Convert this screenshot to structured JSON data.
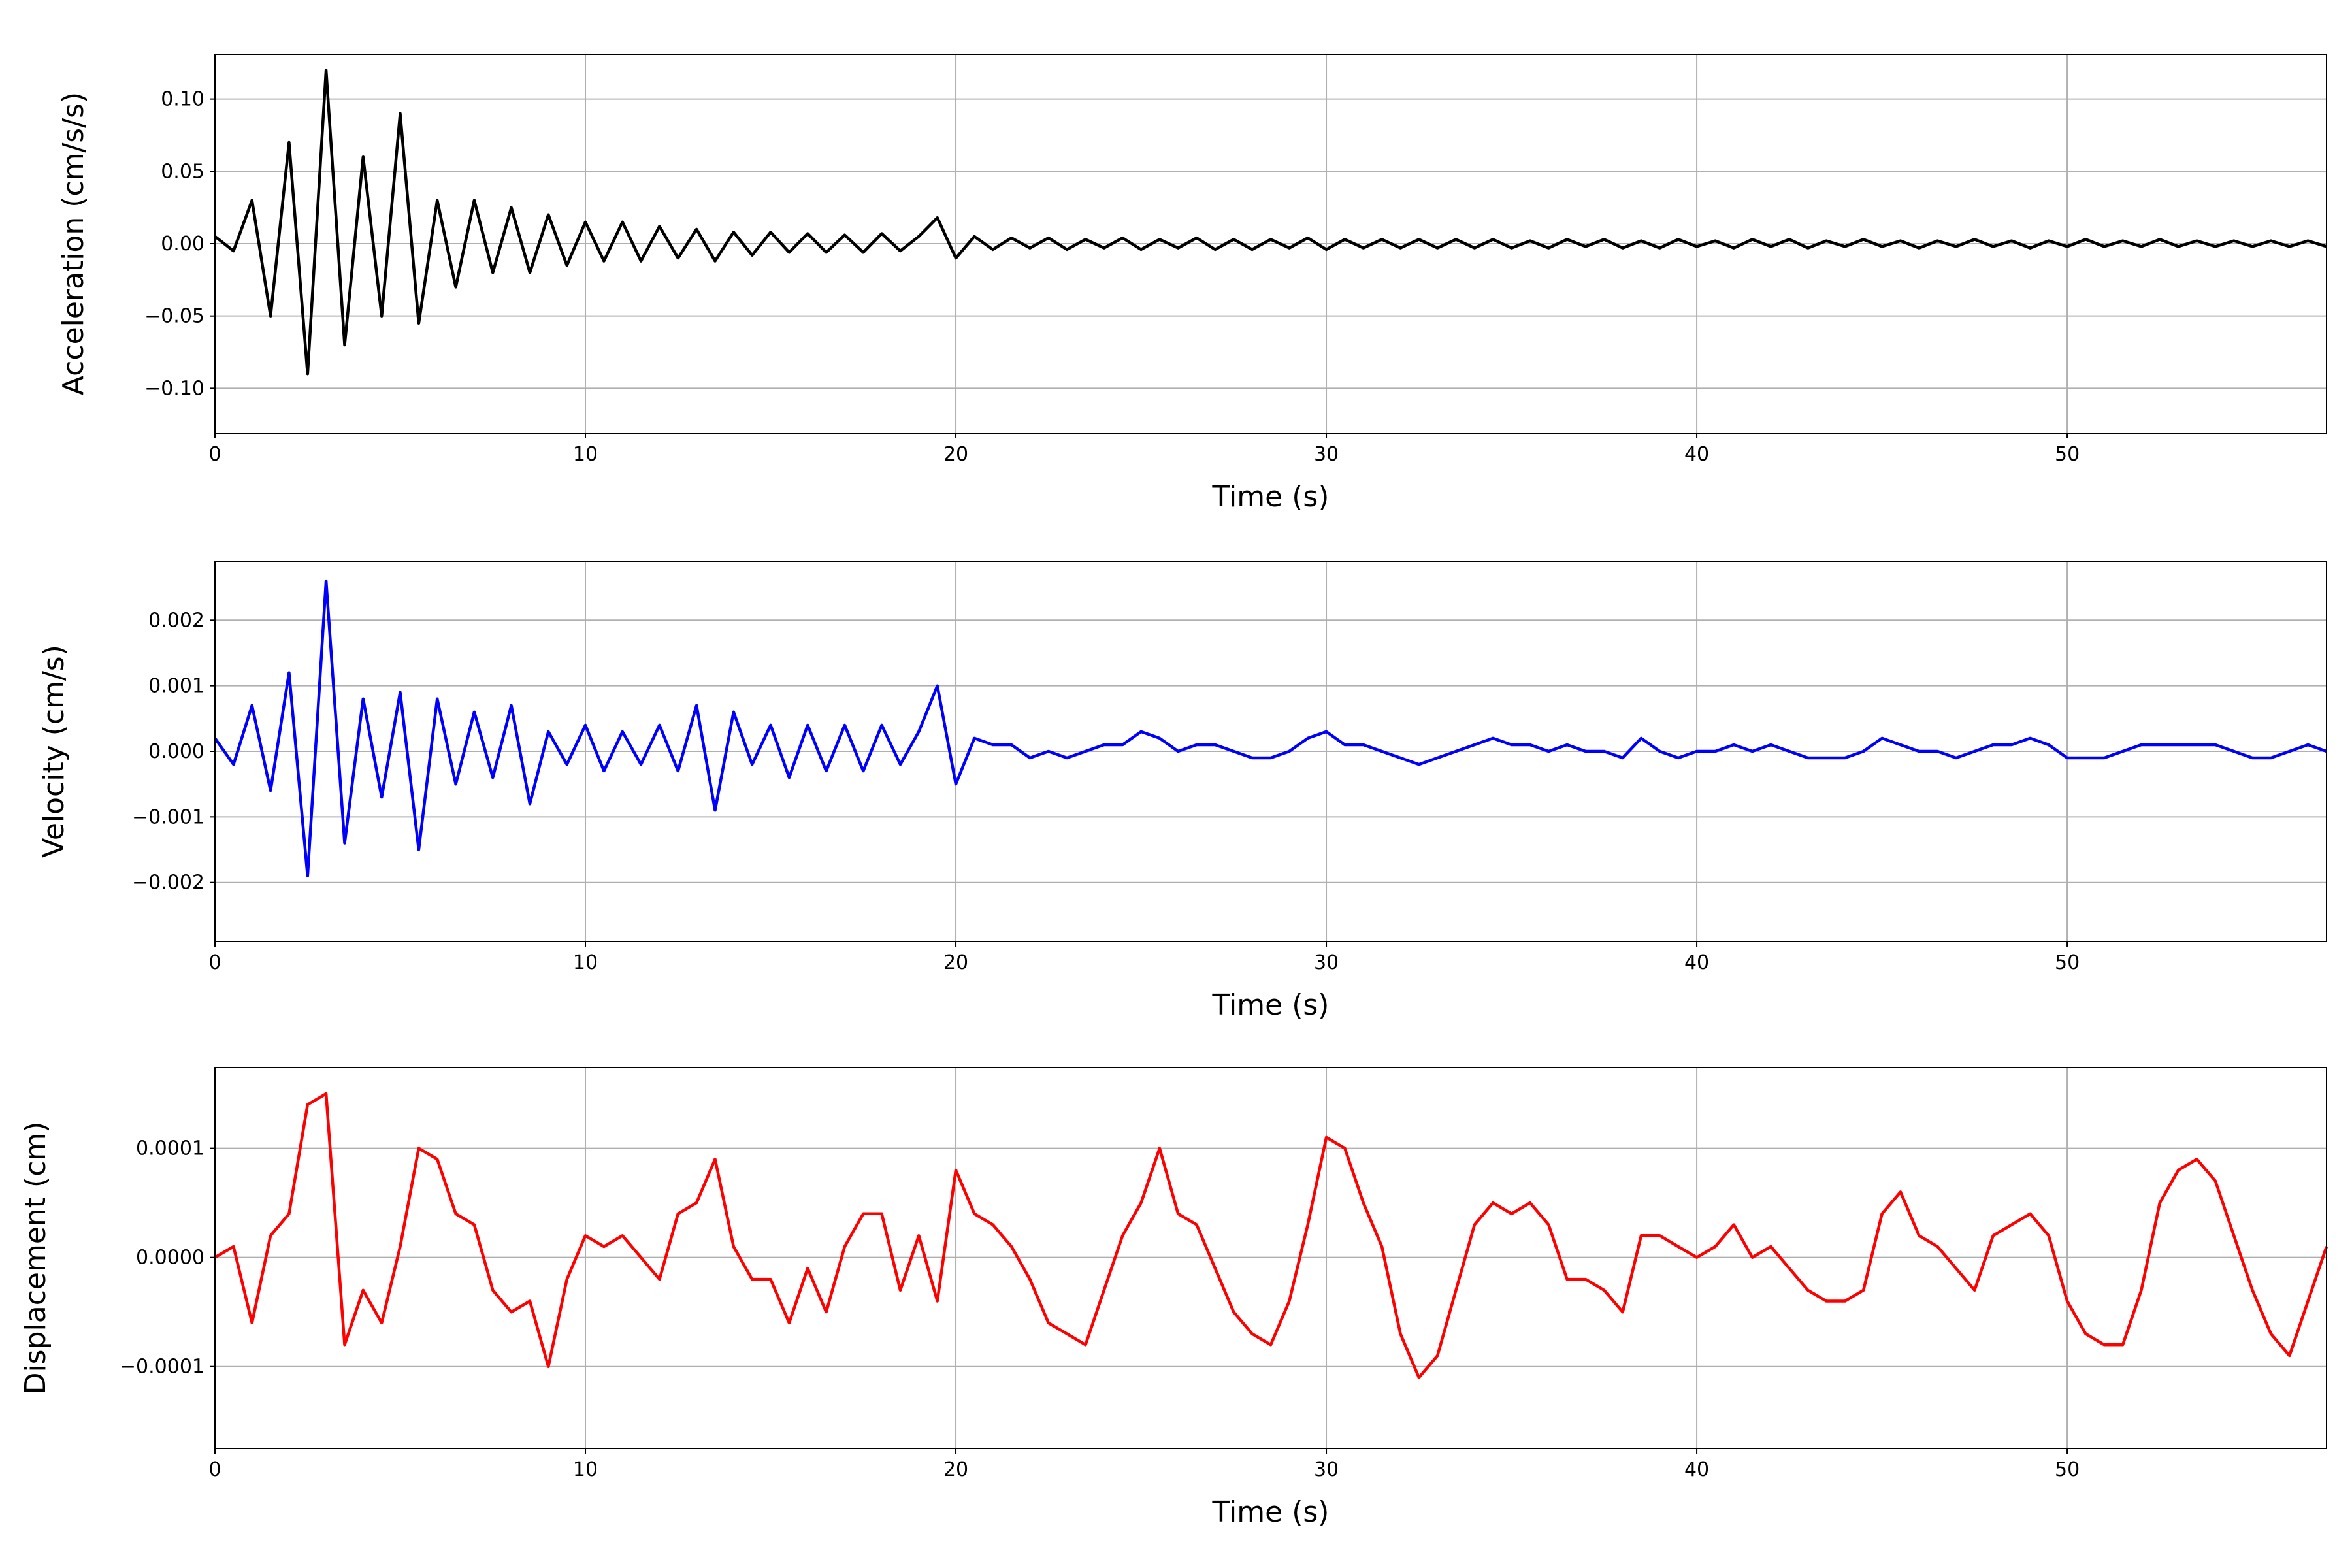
{
  "chart_data": [
    {
      "type": "line",
      "ylabel": "Acceleration (cm/s/s)",
      "xlabel": "Time (s)",
      "color": "#000000",
      "grid": true,
      "xlim": [
        0,
        57
      ],
      "xticks": [
        0,
        10,
        20,
        30,
        40,
        50
      ],
      "ylim": [
        -0.131,
        0.131
      ],
      "yticks": [
        {
          "value": -0.1,
          "label": "−0.10"
        },
        {
          "value": -0.05,
          "label": "−0.05"
        },
        {
          "value": 0,
          "label": "0.00"
        },
        {
          "value": 0.05,
          "label": "0.05"
        },
        {
          "value": 0.1,
          "label": "0.10"
        }
      ],
      "x": [
        0,
        0.5,
        1,
        1.5,
        2,
        2.5,
        3,
        3.5,
        4,
        4.5,
        5,
        5.5,
        6,
        6.5,
        7,
        7.5,
        8,
        8.5,
        9,
        9.5,
        10,
        10.5,
        11,
        11.5,
        12,
        12.5,
        13,
        13.5,
        14,
        14.5,
        15,
        15.5,
        16,
        16.5,
        17,
        17.5,
        18,
        18.5,
        19,
        19.5,
        20,
        20.5,
        21,
        21.5,
        22,
        22.5,
        23,
        23.5,
        24,
        24.5,
        25,
        25.5,
        26,
        26.5,
        27,
        27.5,
        28,
        28.5,
        29,
        29.5,
        30,
        30.5,
        31,
        31.5,
        32,
        32.5,
        33,
        33.5,
        34,
        34.5,
        35,
        35.5,
        36,
        36.5,
        37,
        37.5,
        38,
        38.5,
        39,
        39.5,
        40,
        40.5,
        41,
        41.5,
        42,
        42.5,
        43,
        43.5,
        44,
        44.5,
        45,
        45.5,
        46,
        46.5,
        47,
        47.5,
        48,
        48.5,
        49,
        49.5,
        50,
        50.5,
        51,
        51.5,
        52,
        52.5,
        53,
        53.5,
        54,
        54.5,
        55,
        55.5,
        56,
        56.5,
        57
      ],
      "values": [
        0.005,
        -0.005,
        0.03,
        -0.05,
        0.07,
        -0.09,
        0.12,
        -0.07,
        0.06,
        -0.05,
        0.09,
        -0.055,
        0.03,
        -0.03,
        0.03,
        -0.02,
        0.025,
        -0.02,
        0.02,
        -0.015,
        0.015,
        -0.012,
        0.015,
        -0.012,
        0.012,
        -0.01,
        0.01,
        -0.012,
        0.008,
        -0.008,
        0.008,
        -0.006,
        0.007,
        -0.006,
        0.006,
        -0.006,
        0.007,
        -0.005,
        0.005,
        0.018,
        -0.01,
        0.005,
        -0.004,
        0.004,
        -0.003,
        0.004,
        -0.004,
        0.003,
        -0.003,
        0.004,
        -0.004,
        0.003,
        -0.003,
        0.004,
        -0.004,
        0.003,
        -0.004,
        0.003,
        -0.003,
        0.004,
        -0.004,
        0.003,
        -0.003,
        0.003,
        -0.003,
        0.003,
        -0.003,
        0.003,
        -0.003,
        0.003,
        -0.003,
        0.002,
        -0.003,
        0.003,
        -0.002,
        0.003,
        -0.003,
        0.002,
        -0.003,
        0.003,
        -0.002,
        0.002,
        -0.003,
        0.003,
        -0.002,
        0.003,
        -0.003,
        0.002,
        -0.002,
        0.003,
        -0.002,
        0.002,
        -0.003,
        0.002,
        -0.002,
        0.003,
        -0.002,
        0.002,
        -0.003,
        0.002,
        -0.002,
        0.003,
        -0.002,
        0.002,
        -0.002,
        0.003,
        -0.002,
        0.002,
        -0.002,
        0.002,
        -0.002,
        0.002,
        -0.002,
        0.002,
        -0.002
      ]
    },
    {
      "type": "line",
      "ylabel": "Velocity (cm/s)",
      "xlabel": "Time (s)",
      "color": "#0000ff",
      "grid": true,
      "xlim": [
        0,
        57
      ],
      "xticks": [
        0,
        10,
        20,
        30,
        40,
        50
      ],
      "ylim": [
        -0.0029,
        0.0029
      ],
      "yticks": [
        {
          "value": -0.002,
          "label": "−0.002"
        },
        {
          "value": -0.001,
          "label": "−0.001"
        },
        {
          "value": 0,
          "label": "0.000"
        },
        {
          "value": 0.001,
          "label": "0.001"
        },
        {
          "value": 0.002,
          "label": "0.002"
        }
      ],
      "x": [
        0,
        0.5,
        1,
        1.5,
        2,
        2.5,
        3,
        3.5,
        4,
        4.5,
        5,
        5.5,
        6,
        6.5,
        7,
        7.5,
        8,
        8.5,
        9,
        9.5,
        10,
        10.5,
        11,
        11.5,
        12,
        12.5,
        13,
        13.5,
        14,
        14.5,
        15,
        15.5,
        16,
        16.5,
        17,
        17.5,
        18,
        18.5,
        19,
        19.5,
        20,
        20.5,
        21,
        21.5,
        22,
        22.5,
        23,
        23.5,
        24,
        24.5,
        25,
        25.5,
        26,
        26.5,
        27,
        27.5,
        28,
        28.5,
        29,
        29.5,
        30,
        30.5,
        31,
        31.5,
        32,
        32.5,
        33,
        33.5,
        34,
        34.5,
        35,
        35.5,
        36,
        36.5,
        37,
        37.5,
        38,
        38.5,
        39,
        39.5,
        40,
        40.5,
        41,
        41.5,
        42,
        42.5,
        43,
        43.5,
        44,
        44.5,
        45,
        45.5,
        46,
        46.5,
        47,
        47.5,
        48,
        48.5,
        49,
        49.5,
        50,
        50.5,
        51,
        51.5,
        52,
        52.5,
        53,
        53.5,
        54,
        54.5,
        55,
        55.5,
        56,
        56.5,
        57
      ],
      "values": [
        0.0002,
        -0.0002,
        0.0007,
        -0.0006,
        0.0012,
        -0.0019,
        0.0026,
        -0.0014,
        0.0008,
        -0.0007,
        0.0009,
        -0.0015,
        0.0008,
        -0.0005,
        0.0006,
        -0.0004,
        0.0007,
        -0.0008,
        0.0003,
        -0.0002,
        0.0004,
        -0.0003,
        0.0003,
        -0.0002,
        0.0004,
        -0.0003,
        0.0007,
        -0.0009,
        0.0006,
        -0.0002,
        0.0004,
        -0.0004,
        0.0004,
        -0.0003,
        0.0004,
        -0.0003,
        0.0004,
        -0.0002,
        0.0003,
        0.001,
        -0.0005,
        0.0002,
        0.0001,
        0.0001,
        -0.0001,
        0,
        -0.0001,
        0,
        0.0001,
        0.0001,
        0.0003,
        0.0002,
        0,
        0.0001,
        0.0001,
        0,
        -0.0001,
        -0.0001,
        0,
        0.0002,
        0.0003,
        0.0001,
        0.0001,
        0,
        -0.0001,
        -0.0002,
        -0.0001,
        0,
        0.0001,
        0.0002,
        0.0001,
        0.0001,
        0,
        0.0001,
        0,
        0,
        -0.0001,
        0.0002,
        0,
        -0.0001,
        0,
        0,
        0.0001,
        0,
        0.0001,
        0,
        -0.0001,
        -0.0001,
        -0.0001,
        0,
        0.0002,
        0.0001,
        0,
        0,
        -0.0001,
        0,
        0.0001,
        0.0001,
        0.0002,
        0.0001,
        -0.0001,
        -0.0001,
        -0.0001,
        0,
        0.0001,
        0.0001,
        0.0001,
        0.0001,
        0.0001,
        0,
        -0.0001,
        -0.0001,
        0,
        0.0001,
        0
      ]
    },
    {
      "type": "line",
      "ylabel": "Displacement (cm)",
      "xlabel": "Time (s)",
      "color": "#ff0000",
      "grid": true,
      "xlim": [
        0,
        57
      ],
      "xticks": [
        0,
        10,
        20,
        30,
        40,
        50
      ],
      "ylim": [
        -0.000175,
        0.000174
      ],
      "yticks": [
        {
          "value": -0.0001,
          "label": "−0.0001"
        },
        {
          "value": 0,
          "label": "0.0000"
        },
        {
          "value": 0.0001,
          "label": "0.0001"
        }
      ],
      "x": [
        0,
        0.5,
        1,
        1.5,
        2,
        2.5,
        3,
        3.5,
        4,
        4.5,
        5,
        5.5,
        6,
        6.5,
        7,
        7.5,
        8,
        8.5,
        9,
        9.5,
        10,
        10.5,
        11,
        11.5,
        12,
        12.5,
        13,
        13.5,
        14,
        14.5,
        15,
        15.5,
        16,
        16.5,
        17,
        17.5,
        18,
        18.5,
        19,
        19.5,
        20,
        20.5,
        21,
        21.5,
        22,
        22.5,
        23,
        23.5,
        24,
        24.5,
        25,
        25.5,
        26,
        26.5,
        27,
        27.5,
        28,
        28.5,
        29,
        29.5,
        30,
        30.5,
        31,
        31.5,
        32,
        32.5,
        33,
        33.5,
        34,
        34.5,
        35,
        35.5,
        36,
        36.5,
        37,
        37.5,
        38,
        38.5,
        39,
        39.5,
        40,
        40.5,
        41,
        41.5,
        42,
        42.5,
        43,
        43.5,
        44,
        44.5,
        45,
        45.5,
        46,
        46.5,
        47,
        47.5,
        48,
        48.5,
        49,
        49.5,
        50,
        50.5,
        51,
        51.5,
        52,
        52.5,
        53,
        53.5,
        54,
        54.5,
        55,
        55.5,
        56,
        56.5,
        57
      ],
      "values": [
        0,
        1e-05,
        -6e-05,
        2e-05,
        4e-05,
        0.00014,
        0.00015,
        -8e-05,
        -3e-05,
        -6e-05,
        1e-05,
        0.0001,
        9e-05,
        4e-05,
        3e-05,
        -3e-05,
        -5e-05,
        -4e-05,
        -0.0001,
        -2e-05,
        2e-05,
        1e-05,
        2e-05,
        0,
        -2e-05,
        4e-05,
        5e-05,
        9e-05,
        1e-05,
        -2e-05,
        -2e-05,
        -6e-05,
        -1e-05,
        -5e-05,
        1e-05,
        4e-05,
        4e-05,
        -3e-05,
        2e-05,
        -4e-05,
        8e-05,
        4e-05,
        3e-05,
        1e-05,
        -2e-05,
        -6e-05,
        -7e-05,
        -8e-05,
        -3e-05,
        2e-05,
        5e-05,
        0.0001,
        4e-05,
        3e-05,
        -1e-05,
        -5e-05,
        -7e-05,
        -8e-05,
        -4e-05,
        3e-05,
        0.00011,
        0.0001,
        5e-05,
        1e-05,
        -7e-05,
        -0.00011,
        -9e-05,
        -3e-05,
        3e-05,
        5e-05,
        4e-05,
        5e-05,
        3e-05,
        -2e-05,
        -2e-05,
        -3e-05,
        -5e-05,
        2e-05,
        2e-05,
        1e-05,
        0,
        1e-05,
        3e-05,
        0,
        1e-05,
        -1e-05,
        -3e-05,
        -4e-05,
        -4e-05,
        -3e-05,
        4e-05,
        6e-05,
        2e-05,
        1e-05,
        -1e-05,
        -3e-05,
        2e-05,
        3e-05,
        4e-05,
        2e-05,
        -4e-05,
        -7e-05,
        -8e-05,
        -8e-05,
        -3e-05,
        5e-05,
        8e-05,
        9e-05,
        7e-05,
        2e-05,
        -3e-05,
        -7e-05,
        -9e-05,
        -4e-05,
        1e-05
      ]
    }
  ]
}
